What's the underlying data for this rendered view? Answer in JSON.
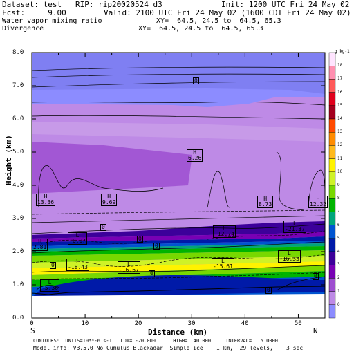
{
  "header": {
    "dataset": "Dataset: test   RIP: rip20020524 d3",
    "init": "Init: 1200 UTC Fri 24 May 02",
    "fcst": "Fcst:     9.00",
    "valid": "Valid: 2100 UTC Fri 24 May 02 (1600 CDT Fri 24 May 02)",
    "field1": "Water vapor mixing ratio",
    "xy1": "XY=  64.5, 24.5 to  64.5, 65.3",
    "field2": "Divergence",
    "xy2": "XY=  64.5, 24.5 to  64.5, 65.3"
  },
  "axes": {
    "ylabel": "Height (km)",
    "xlabel": "Distance (km)",
    "left_end": "S",
    "right_end": "N",
    "yticks": [
      "0.0",
      "1.0",
      "2.0",
      "3.0",
      "4.0",
      "5.0",
      "6.0",
      "7.0",
      "8.0"
    ],
    "xticks": [
      "0",
      "10",
      "20",
      "30",
      "40",
      "50"
    ]
  },
  "colorbar": {
    "unit": "g kg-1",
    "labels": [
      "18",
      "17",
      "16",
      "15",
      "14",
      "13",
      "12",
      "11",
      "10",
      "9",
      "8",
      "7",
      "6",
      "5",
      "4",
      "3",
      "2",
      "1",
      "0"
    ],
    "colors": [
      "#ffe4ff",
      "#ff8fb0",
      "#ff5a5a",
      "#e0001c",
      "#a4001e",
      "#ff4a00",
      "#ff8c00",
      "#ffba1c",
      "#fff300",
      "#cff227",
      "#78d800",
      "#00b400",
      "#00a67a",
      "#0054d0",
      "#001aa8",
      "#3c009a",
      "#7800b4",
      "#9e4ed0",
      "#be8ae6",
      "#8c8cff"
    ]
  },
  "annotations": {
    "h_labels": [
      {
        "name": "h-6.26",
        "text": "6.26"
      },
      {
        "name": "h-13.36",
        "text": "13.36"
      },
      {
        "name": "h-9.69",
        "text": "9.69"
      },
      {
        "name": "h-8.73",
        "text": "8.73"
      },
      {
        "name": "h-12.32",
        "text": "12.32"
      },
      {
        "name": "h-2.81",
        "text": "2.81"
      }
    ],
    "l_labels": [
      {
        "name": "l-12.74",
        "text": "-12.74"
      },
      {
        "name": "l-21.37",
        "text": "-21.37"
      },
      {
        "name": "l-6.97",
        "text": "-6.97"
      },
      {
        "name": "l-18.43",
        "text": "-18.43"
      },
      {
        "name": "l-16.67",
        "text": "-16.67"
      },
      {
        "name": "l-15.61",
        "text": "-15.61"
      },
      {
        "name": "l-16.33",
        "text": "-16.33"
      },
      {
        "name": "l-5.36",
        "text": "-5.36"
      }
    ],
    "zero_label": "0",
    "h_letter": "H",
    "l_letter": "L"
  },
  "footer": {
    "contours": "CONTOURS:  UNITS=10**-6 s-1   LOW= -20.000      HIGH=  40.000     INTERVAL=   5.0000",
    "model": "Model info: V3.5.0 No Cumulus Blackadar  Simple ice    1 km,  29 levels,    3 sec"
  }
}
